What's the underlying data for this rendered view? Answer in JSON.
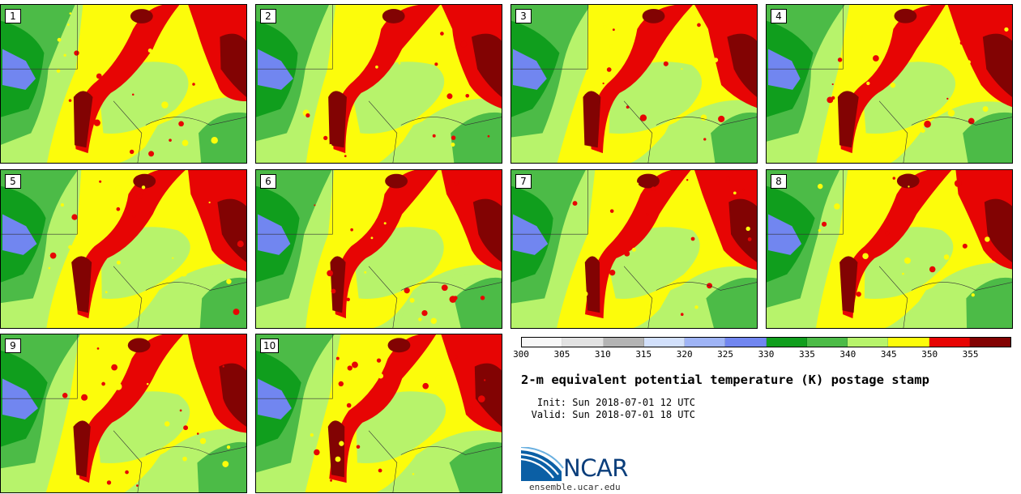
{
  "panels": [
    {
      "label": "1"
    },
    {
      "label": "2"
    },
    {
      "label": "3"
    },
    {
      "label": "4"
    },
    {
      "label": "5"
    },
    {
      "label": "6"
    },
    {
      "label": "7"
    },
    {
      "label": "8"
    },
    {
      "label": "9"
    },
    {
      "label": "10"
    }
  ],
  "colorbar": {
    "colors": [
      "#f7f7f7",
      "#e2e2e2",
      "#b4b4b4",
      "#d2e0fb",
      "#9fb4f6",
      "#7186f0",
      "#109e1d",
      "#4cbb47",
      "#b7f36b",
      "#fcfc0b",
      "#e70504",
      "#820303"
    ],
    "ticks": [
      "300",
      "305",
      "310",
      "315",
      "320",
      "325",
      "330",
      "335",
      "340",
      "345",
      "350",
      "355"
    ]
  },
  "title": "2-m equivalent potential temperature (K) postage stamp",
  "init_label": "Init:",
  "init_value": "Sun 2018-07-01 12 UTC",
  "valid_label": "Valid:",
  "valid_value": "Sun 2018-07-01 18 UTC",
  "logo": {
    "name": "NCAR",
    "url": "ensemble.ucar.edu"
  }
}
